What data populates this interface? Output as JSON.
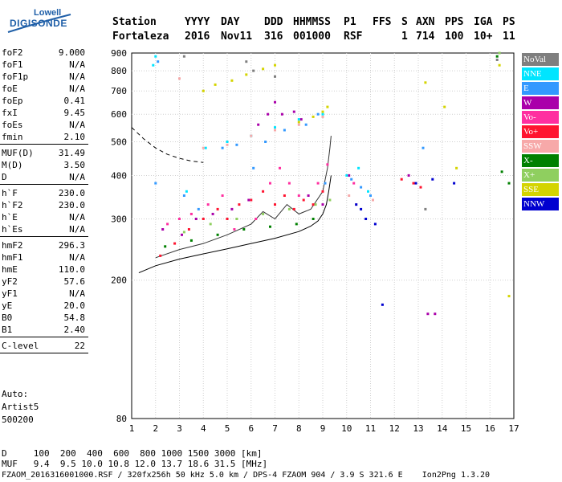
{
  "logo": {
    "line1": "Lowell",
    "line2": "DIGISONDE"
  },
  "header": {
    "labels": [
      "Station",
      "YYYY",
      "DAY",
      "DDD",
      "HHMMSS",
      "P1",
      "FFS",
      "S",
      "AXN",
      "PPS",
      "IGA",
      "PS"
    ],
    "values": [
      "Fortaleza",
      "2016",
      "Nov11",
      "316",
      "001000",
      "RSF",
      "1",
      "714",
      "100",
      "10+",
      "11"
    ]
  },
  "params": [
    {
      "label": "foF2",
      "value": "9.000"
    },
    {
      "label": "foF1",
      "value": "N/A"
    },
    {
      "label": "foF1p",
      "value": "N/A"
    },
    {
      "label": "foE",
      "value": "N/A"
    },
    {
      "label": "foEp",
      "value": "0.41"
    },
    {
      "label": "fxI",
      "value": "9.45"
    },
    {
      "label": "foEs",
      "value": "N/A"
    },
    {
      "label": "fmin",
      "value": "2.10"
    },
    {
      "sep": true
    },
    {
      "label": "MUF(D)",
      "value": "31.49"
    },
    {
      "label": "M(D)",
      "value": "3.50"
    },
    {
      "label": "D",
      "value": "N/A"
    },
    {
      "sep": true
    },
    {
      "label": "h`F",
      "value": "230.0"
    },
    {
      "label": "h`F2",
      "value": "230.0"
    },
    {
      "label": "h`E",
      "value": "N/A"
    },
    {
      "label": "h`Es",
      "value": "N/A"
    },
    {
      "sep": true
    },
    {
      "label": "hmF2",
      "value": "296.3"
    },
    {
      "label": "hmF1",
      "value": "N/A"
    },
    {
      "label": "hmE",
      "value": "110.0"
    },
    {
      "label": "yF2",
      "value": "57.6"
    },
    {
      "label": "yF1",
      "value": "N/A"
    },
    {
      "label": "yE",
      "value": "20.0"
    },
    {
      "label": "B0",
      "value": "54.8"
    },
    {
      "label": "B1",
      "value": "2.40"
    },
    {
      "sep": true
    },
    {
      "label": "C-level",
      "value": "22"
    },
    {
      "sep": true
    }
  ],
  "auto": {
    "line1": "Auto:",
    "line2": "Artist5",
    "line3": "500200"
  },
  "legend": [
    {
      "label": "NoVal",
      "color": "#7f7f7f"
    },
    {
      "label": "NNE",
      "color": "#00e5ff"
    },
    {
      "label": "E",
      "color": "#3399ff"
    },
    {
      "label": "W",
      "color": "#aa00aa"
    },
    {
      "label": "Vo-",
      "color": "#ff2fa0"
    },
    {
      "label": "Vo+",
      "color": "#ff1430"
    },
    {
      "label": "SSW",
      "color": "#f7a9a9"
    },
    {
      "label": "X-",
      "color": "#008000"
    },
    {
      "label": "X+",
      "color": "#8fcf5f"
    },
    {
      "label": "SSE",
      "color": "#d4d400"
    },
    {
      "label": "NNW",
      "color": "#0000d0"
    }
  ],
  "bottom": {
    "d_row": "D     100  200  400  600  800 1000 1500 3000 [km]",
    "muf_row": "MUF   9.4  9.5 10.0 10.8 12.0 13.7 18.6 31.5 [MHz]",
    "footer": "FZAOM_2016316001000.RSF / 320fx256h 50 kHz 5.0 km / DPS-4 FZAOM 904 / 3.9 S 321.6 E    Ion2Png 1.3.20"
  },
  "chart_data": {
    "type": "scatter",
    "x_ticks": [
      "1",
      "2",
      "3",
      "4",
      "5",
      "6",
      "7",
      "8",
      "9",
      "10",
      "11",
      "12",
      "13",
      "14",
      "15",
      "16",
      "17"
    ],
    "y_ticks": [
      "80",
      "200",
      "300",
      "400",
      "500",
      "600",
      "700",
      "800",
      "900"
    ],
    "xlim": [
      1,
      17
    ],
    "y_scale": "log",
    "ylim": [
      80,
      900
    ],
    "grid": true,
    "legend_position": "right",
    "series": [
      {
        "name": "Vo+",
        "color": "#ff1430",
        "points": [
          [
            2.2,
            235
          ],
          [
            2.8,
            255
          ],
          [
            3.4,
            280
          ],
          [
            4.0,
            300
          ],
          [
            4.6,
            320
          ],
          [
            5.0,
            300
          ],
          [
            5.5,
            330
          ],
          [
            6.0,
            340
          ],
          [
            6.5,
            360
          ],
          [
            7.0,
            330
          ],
          [
            7.4,
            350
          ],
          [
            7.8,
            320
          ],
          [
            8.2,
            340
          ],
          [
            8.6,
            330
          ],
          [
            9.0,
            360
          ],
          [
            12.3,
            390
          ],
          [
            12.8,
            380
          ],
          [
            13.1,
            370
          ]
        ]
      },
      {
        "name": "Vo-",
        "color": "#ff2fa0",
        "points": [
          [
            2.5,
            290
          ],
          [
            3.0,
            300
          ],
          [
            3.5,
            310
          ],
          [
            4.2,
            330
          ],
          [
            4.8,
            350
          ],
          [
            5.3,
            280
          ],
          [
            6.2,
            300
          ],
          [
            6.8,
            380
          ],
          [
            7.2,
            420
          ],
          [
            7.6,
            380
          ],
          [
            8.0,
            350
          ],
          [
            8.8,
            380
          ],
          [
            9.2,
            430
          ],
          [
            10.3,
            380
          ]
        ]
      },
      {
        "name": "W",
        "color": "#aa00aa",
        "points": [
          [
            2.3,
            280
          ],
          [
            3.1,
            270
          ],
          [
            3.7,
            300
          ],
          [
            4.4,
            310
          ],
          [
            5.2,
            320
          ],
          [
            5.9,
            340
          ],
          [
            6.3,
            560
          ],
          [
            6.7,
            600
          ],
          [
            7.0,
            650
          ],
          [
            7.3,
            600
          ],
          [
            7.8,
            610
          ],
          [
            8.1,
            580
          ],
          [
            8.4,
            350
          ],
          [
            9.0,
            330
          ],
          [
            10.1,
            400
          ],
          [
            12.6,
            400
          ],
          [
            13.7,
            160
          ],
          [
            13.4,
            160
          ]
        ]
      },
      {
        "name": "E",
        "color": "#3399ff",
        "points": [
          [
            2.0,
            380
          ],
          [
            2.1,
            850
          ],
          [
            3.2,
            350
          ],
          [
            3.8,
            320
          ],
          [
            4.8,
            480
          ],
          [
            5.4,
            490
          ],
          [
            6.1,
            420
          ],
          [
            6.6,
            500
          ],
          [
            7.4,
            540
          ],
          [
            8.3,
            560
          ],
          [
            8.8,
            600
          ],
          [
            9.1,
            380
          ],
          [
            10.2,
            390
          ],
          [
            10.6,
            370
          ],
          [
            11.0,
            350
          ],
          [
            13.2,
            480
          ]
        ]
      },
      {
        "name": "NNE",
        "color": "#00e5ff",
        "points": [
          [
            1.9,
            830
          ],
          [
            2.0,
            880
          ],
          [
            3.3,
            360
          ],
          [
            4.1,
            480
          ],
          [
            5.0,
            500
          ],
          [
            6.0,
            520
          ],
          [
            7.0,
            550
          ],
          [
            8.0,
            580
          ],
          [
            9.0,
            600
          ],
          [
            10.0,
            400
          ],
          [
            10.5,
            420
          ],
          [
            10.9,
            360
          ]
        ]
      },
      {
        "name": "SSW",
        "color": "#f7a9a9",
        "points": [
          [
            3.0,
            760
          ],
          [
            4.0,
            480
          ],
          [
            5.0,
            490
          ],
          [
            6.0,
            520
          ],
          [
            7.0,
            540
          ],
          [
            8.0,
            560
          ],
          [
            9.0,
            590
          ],
          [
            10.1,
            350
          ],
          [
            10.4,
            330
          ],
          [
            11.1,
            340
          ]
        ]
      },
      {
        "name": "X-",
        "color": "#008000",
        "points": [
          [
            2.4,
            250
          ],
          [
            3.5,
            260
          ],
          [
            4.6,
            270
          ],
          [
            5.7,
            280
          ],
          [
            6.8,
            285
          ],
          [
            7.9,
            290
          ],
          [
            8.6,
            300
          ],
          [
            16.3,
            880
          ],
          [
            16.5,
            410
          ],
          [
            16.8,
            380
          ]
        ]
      },
      {
        "name": "X+",
        "color": "#8fcf5f",
        "points": [
          [
            3.2,
            275
          ],
          [
            4.3,
            290
          ],
          [
            5.4,
            300
          ],
          [
            6.5,
            310
          ],
          [
            7.6,
            320
          ],
          [
            8.7,
            330
          ],
          [
            9.3,
            340
          ],
          [
            16.4,
            900
          ]
        ]
      },
      {
        "name": "SSE",
        "color": "#d4d400",
        "points": [
          [
            4.0,
            700
          ],
          [
            4.5,
            730
          ],
          [
            5.2,
            750
          ],
          [
            5.8,
            780
          ],
          [
            6.5,
            810
          ],
          [
            7.0,
            830
          ],
          [
            8.0,
            570
          ],
          [
            8.6,
            590
          ],
          [
            9.0,
            610
          ],
          [
            9.2,
            630
          ],
          [
            13.3,
            740
          ],
          [
            14.1,
            630
          ],
          [
            14.6,
            420
          ],
          [
            16.4,
            830
          ],
          [
            16.8,
            180
          ]
        ]
      },
      {
        "name": "NNW",
        "color": "#0000d0",
        "points": [
          [
            10.4,
            330
          ],
          [
            10.6,
            320
          ],
          [
            10.8,
            300
          ],
          [
            11.2,
            290
          ],
          [
            11.5,
            170
          ],
          [
            12.9,
            380
          ],
          [
            13.6,
            390
          ],
          [
            14.5,
            380
          ]
        ]
      },
      {
        "name": "NoVal",
        "color": "#7f7f7f",
        "points": [
          [
            3.2,
            880
          ],
          [
            5.8,
            850
          ],
          [
            6.1,
            800
          ],
          [
            7.0,
            770
          ],
          [
            13.3,
            320
          ],
          [
            16.3,
            860
          ]
        ]
      }
    ],
    "model_curves": [
      {
        "style": "solid",
        "points": [
          [
            1.3,
            210
          ],
          [
            2.0,
            220
          ],
          [
            3.0,
            230
          ],
          [
            4.0,
            238
          ],
          [
            5.0,
            246
          ],
          [
            6.0,
            255
          ],
          [
            7.0,
            264
          ],
          [
            8.0,
            276
          ],
          [
            8.5,
            286
          ],
          [
            8.8,
            296
          ],
          [
            9.0,
            310
          ],
          [
            9.15,
            330
          ],
          [
            9.25,
            360
          ],
          [
            9.35,
            400
          ]
        ]
      },
      {
        "style": "dashed",
        "points": [
          [
            1.0,
            550
          ],
          [
            1.5,
            510
          ],
          [
            2.0,
            480
          ],
          [
            2.5,
            460
          ],
          [
            3.0,
            448
          ],
          [
            3.5,
            440
          ],
          [
            4.0,
            436
          ]
        ]
      },
      {
        "style": "solid-dark",
        "points": [
          [
            2.0,
            232
          ],
          [
            3.0,
            245
          ],
          [
            4.0,
            255
          ],
          [
            5.0,
            270
          ],
          [
            6.0,
            290
          ],
          [
            6.5,
            315
          ],
          [
            7.0,
            300
          ],
          [
            7.5,
            330
          ],
          [
            8.0,
            310
          ],
          [
            8.5,
            320
          ],
          [
            9.0,
            360
          ],
          [
            9.2,
            420
          ],
          [
            9.3,
            480
          ],
          [
            9.35,
            520
          ]
        ]
      }
    ]
  }
}
